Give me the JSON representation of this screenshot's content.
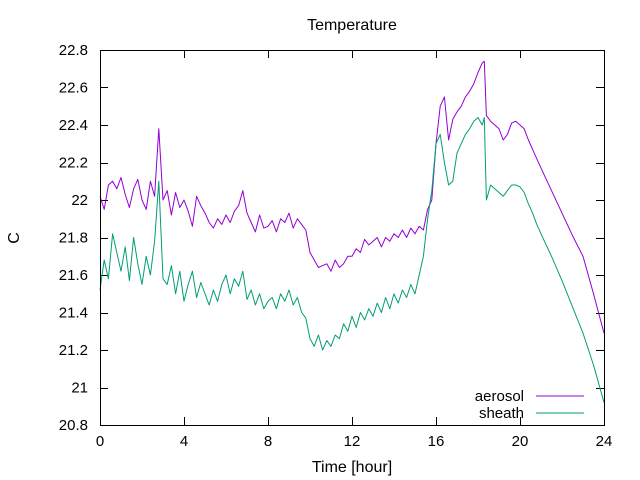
{
  "chart_data": {
    "type": "line",
    "title": "Temperature",
    "xlabel": "Time [hour]",
    "ylabel": "C",
    "xlim": [
      0,
      24
    ],
    "ylim": [
      20.8,
      22.8
    ],
    "xticks": [
      0,
      4,
      8,
      12,
      16,
      20,
      24
    ],
    "xtick_labels": [
      "0",
      "4",
      "8",
      "12",
      "16",
      "20",
      "24"
    ],
    "yticks": [
      20.8,
      21,
      21.2,
      21.4,
      21.6,
      21.8,
      22,
      22.2,
      22.4,
      22.6,
      22.8
    ],
    "ytick_labels": [
      "20.8",
      "21",
      "21.2",
      "21.4",
      "21.6",
      "21.8",
      "22",
      "22.2",
      "22.4",
      "22.6",
      "22.8"
    ],
    "grid": false,
    "legend_position": "bottom-right",
    "series": [
      {
        "name": "aerosol",
        "color": "#9400d3",
        "x": [
          0,
          0.2,
          0.4,
          0.6,
          0.8,
          1.0,
          1.2,
          1.4,
          1.6,
          1.8,
          2.0,
          2.2,
          2.4,
          2.6,
          2.8,
          3.0,
          3.2,
          3.4,
          3.6,
          3.8,
          4.0,
          4.2,
          4.4,
          4.6,
          4.8,
          5.0,
          5.2,
          5.4,
          5.6,
          5.8,
          6.0,
          6.2,
          6.4,
          6.6,
          6.8,
          7.0,
          7.2,
          7.4,
          7.6,
          7.8,
          8.0,
          8.2,
          8.4,
          8.6,
          8.8,
          9.0,
          9.2,
          9.4,
          9.6,
          9.8,
          10.0,
          10.2,
          10.4,
          10.6,
          10.8,
          11.0,
          11.2,
          11.4,
          11.6,
          11.8,
          12.0,
          12.2,
          12.4,
          12.6,
          12.8,
          13.0,
          13.2,
          13.4,
          13.6,
          13.8,
          14.0,
          14.2,
          14.4,
          14.6,
          14.8,
          15.0,
          15.2,
          15.4,
          15.6,
          15.8,
          16.0,
          16.2,
          16.4,
          16.6,
          16.8,
          17.0,
          17.2,
          17.4,
          17.6,
          17.8,
          18.0,
          18.2,
          18.3,
          18.4,
          18.6,
          18.8,
          19.0,
          19.2,
          19.4,
          19.6,
          19.8,
          20.0,
          20.2,
          20.4,
          20.6,
          20.8,
          21.0,
          21.5,
          22.0,
          22.5,
          23.0,
          23.5,
          24.0
        ],
        "values": [
          22.02,
          21.95,
          22.08,
          22.1,
          22.06,
          22.12,
          22.03,
          21.96,
          22.06,
          22.11,
          22.0,
          21.95,
          22.1,
          22.02,
          22.38,
          22.0,
          22.05,
          21.92,
          22.04,
          21.96,
          22.0,
          21.94,
          21.86,
          22.02,
          21.97,
          21.93,
          21.88,
          21.85,
          21.9,
          21.87,
          21.92,
          21.88,
          21.94,
          21.97,
          22.05,
          21.93,
          21.88,
          21.83,
          21.92,
          21.85,
          21.86,
          21.89,
          21.83,
          21.9,
          21.88,
          21.93,
          21.85,
          21.9,
          21.87,
          21.84,
          21.72,
          21.68,
          21.64,
          21.65,
          21.66,
          21.62,
          21.68,
          21.64,
          21.66,
          21.7,
          21.7,
          21.74,
          21.72,
          21.79,
          21.76,
          21.78,
          21.8,
          21.75,
          21.8,
          21.78,
          21.82,
          21.8,
          21.84,
          21.8,
          21.85,
          21.82,
          21.86,
          21.84,
          21.95,
          22.0,
          22.3,
          22.5,
          22.55,
          22.32,
          22.43,
          22.47,
          22.5,
          22.55,
          22.58,
          22.62,
          22.68,
          22.73,
          22.74,
          22.45,
          22.42,
          22.4,
          22.38,
          22.32,
          22.35,
          22.41,
          22.42,
          22.4,
          22.38,
          22.32,
          22.27,
          22.22,
          22.17,
          22.05,
          21.93,
          21.81,
          21.7,
          21.5,
          21.29
        ]
      },
      {
        "name": "sheath",
        "color": "#009e73",
        "x": [
          0,
          0.2,
          0.4,
          0.6,
          0.8,
          1.0,
          1.2,
          1.4,
          1.6,
          1.8,
          2.0,
          2.2,
          2.4,
          2.6,
          2.8,
          3.0,
          3.2,
          3.4,
          3.6,
          3.8,
          4.0,
          4.2,
          4.4,
          4.6,
          4.8,
          5.0,
          5.2,
          5.4,
          5.6,
          5.8,
          6.0,
          6.2,
          6.4,
          6.6,
          6.8,
          7.0,
          7.2,
          7.4,
          7.6,
          7.8,
          8.0,
          8.2,
          8.4,
          8.6,
          8.8,
          9.0,
          9.2,
          9.4,
          9.6,
          9.8,
          10.0,
          10.2,
          10.4,
          10.6,
          10.8,
          11.0,
          11.2,
          11.4,
          11.6,
          11.8,
          12.0,
          12.2,
          12.4,
          12.6,
          12.8,
          13.0,
          13.2,
          13.4,
          13.6,
          13.8,
          14.0,
          14.2,
          14.4,
          14.6,
          14.8,
          15.0,
          15.2,
          15.4,
          15.6,
          15.8,
          16.0,
          16.2,
          16.4,
          16.6,
          16.8,
          17.0,
          17.2,
          17.4,
          17.6,
          17.8,
          18.0,
          18.2,
          18.3,
          18.4,
          18.6,
          18.8,
          19.0,
          19.2,
          19.4,
          19.6,
          19.8,
          20.0,
          20.2,
          20.4,
          20.6,
          20.8,
          21.0,
          21.5,
          22.0,
          22.5,
          23.0,
          23.5,
          24.0
        ],
        "values": [
          21.52,
          21.68,
          21.58,
          21.82,
          21.72,
          21.62,
          21.75,
          21.57,
          21.8,
          21.66,
          21.55,
          21.7,
          21.6,
          21.78,
          22.1,
          21.58,
          21.55,
          21.65,
          21.5,
          21.62,
          21.46,
          21.55,
          21.62,
          21.48,
          21.56,
          21.5,
          21.44,
          21.52,
          21.46,
          21.55,
          21.6,
          21.5,
          21.58,
          21.54,
          21.62,
          21.47,
          21.52,
          21.44,
          21.5,
          21.42,
          21.46,
          21.48,
          21.42,
          21.5,
          21.46,
          21.52,
          21.44,
          21.48,
          21.4,
          21.37,
          21.26,
          21.22,
          21.28,
          21.2,
          21.25,
          21.22,
          21.28,
          21.26,
          21.34,
          21.3,
          21.38,
          21.32,
          21.4,
          21.36,
          21.42,
          21.38,
          21.45,
          21.4,
          21.48,
          21.42,
          21.5,
          21.45,
          21.52,
          21.48,
          21.55,
          21.5,
          21.6,
          21.7,
          21.9,
          22.05,
          22.3,
          22.35,
          22.2,
          22.08,
          22.1,
          22.25,
          22.3,
          22.35,
          22.38,
          22.42,
          22.44,
          22.4,
          22.44,
          22.0,
          22.08,
          22.06,
          22.04,
          22.02,
          22.05,
          22.08,
          22.08,
          22.07,
          22.04,
          21.98,
          21.93,
          21.87,
          21.82,
          21.7,
          21.57,
          21.43,
          21.29,
          21.12,
          20.92
        ]
      }
    ]
  }
}
